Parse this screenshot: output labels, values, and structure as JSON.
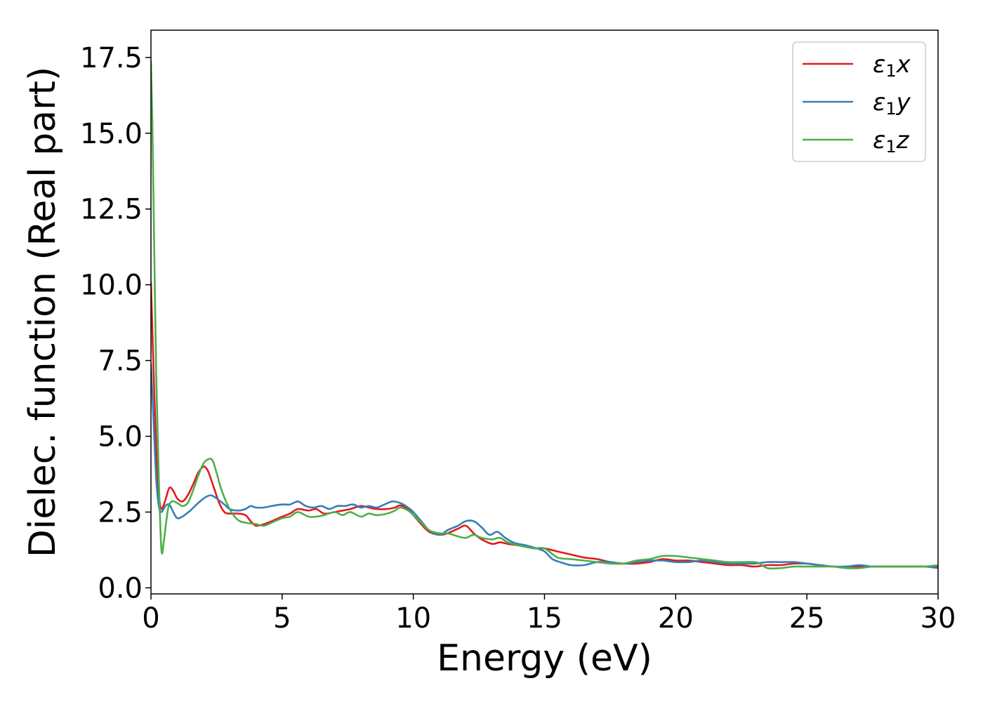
{
  "chart_data": {
    "type": "line",
    "xlabel": "Energy (eV)",
    "ylabel": "Dielec. function (Real part)",
    "xlim": [
      0,
      30
    ],
    "ylim": [
      -0.2,
      18.4
    ],
    "xticks": [
      0,
      5,
      10,
      15,
      20,
      25,
      30
    ],
    "xtick_labels": [
      "0",
      "5",
      "10",
      "15",
      "20",
      "25",
      "30"
    ],
    "yticks": [
      0,
      2.5,
      5,
      7.5,
      10,
      12.5,
      15,
      17.5
    ],
    "ytick_labels": [
      "0.0",
      "2.5",
      "5.0",
      "7.5",
      "10.0",
      "12.5",
      "15.0",
      "17.5"
    ],
    "grid": false,
    "legend_position": "top-right",
    "series": [
      {
        "name": "ε1x",
        "legend": {
          "base": "ε",
          "sub": "1",
          "axis": "x"
        },
        "color": "#e41a1c",
        "x": [
          0,
          0.1,
          0.2,
          0.3,
          0.4,
          0.55,
          0.7,
          0.85,
          1.0,
          1.2,
          1.4,
          1.6,
          1.8,
          2.0,
          2.1,
          2.2,
          2.4,
          2.6,
          2.8,
          3.0,
          3.3,
          3.6,
          3.8,
          4.0,
          4.3,
          4.6,
          5.0,
          5.3,
          5.6,
          6.0,
          6.3,
          6.6,
          7.0,
          7.3,
          7.6,
          8.0,
          8.3,
          8.6,
          9.0,
          9.3,
          9.5,
          9.8,
          10.0,
          10.3,
          10.6,
          11.0,
          11.3,
          11.7,
          12.0,
          12.3,
          12.6,
          13.0,
          13.3,
          13.6,
          14.0,
          14.3,
          14.6,
          15.0,
          15.5,
          16.0,
          16.5,
          17.0,
          17.5,
          18.0,
          18.5,
          19.0,
          19.5,
          20.0,
          20.5,
          21.0,
          21.5,
          22.0,
          22.5,
          23.0,
          23.5,
          24.0,
          24.5,
          25.0,
          25.5,
          26.0,
          26.5,
          27.0,
          27.5,
          28.0,
          28.5,
          29.0,
          29.5,
          30.0
        ],
        "y": [
          10.1,
          7.2,
          4.6,
          3.1,
          2.6,
          2.9,
          3.3,
          3.2,
          2.95,
          2.85,
          3.05,
          3.4,
          3.8,
          4.0,
          3.95,
          3.8,
          3.3,
          2.8,
          2.5,
          2.45,
          2.45,
          2.4,
          2.2,
          2.05,
          2.1,
          2.2,
          2.35,
          2.45,
          2.6,
          2.55,
          2.6,
          2.45,
          2.5,
          2.55,
          2.6,
          2.7,
          2.65,
          2.6,
          2.6,
          2.65,
          2.72,
          2.6,
          2.4,
          2.1,
          1.85,
          1.75,
          1.8,
          1.95,
          2.05,
          1.8,
          1.6,
          1.45,
          1.5,
          1.45,
          1.4,
          1.35,
          1.3,
          1.3,
          1.2,
          1.1,
          1.0,
          0.95,
          0.85,
          0.8,
          0.8,
          0.85,
          0.95,
          0.9,
          0.9,
          0.85,
          0.8,
          0.75,
          0.75,
          0.7,
          0.75,
          0.75,
          0.8,
          0.8,
          0.75,
          0.7,
          0.7,
          0.7,
          0.7,
          0.7,
          0.7,
          0.7,
          0.7,
          0.7
        ]
      },
      {
        "name": "ε1y",
        "legend": {
          "base": "ε",
          "sub": "1",
          "axis": "y"
        },
        "color": "#377eb8",
        "x": [
          0,
          0.1,
          0.2,
          0.3,
          0.4,
          0.55,
          0.7,
          0.85,
          1.0,
          1.2,
          1.5,
          1.8,
          2.1,
          2.3,
          2.5,
          2.8,
          3.0,
          3.3,
          3.6,
          3.8,
          4.0,
          4.3,
          4.6,
          5.0,
          5.3,
          5.6,
          5.9,
          6.2,
          6.5,
          6.8,
          7.1,
          7.4,
          7.7,
          8.0,
          8.3,
          8.6,
          8.9,
          9.2,
          9.5,
          9.8,
          10.0,
          10.3,
          10.6,
          11.0,
          11.3,
          11.7,
          12.0,
          12.3,
          12.6,
          12.9,
          13.2,
          13.5,
          13.8,
          14.0,
          14.3,
          14.7,
          15.0,
          15.3,
          15.6,
          16.0,
          16.5,
          17.0,
          17.5,
          18.0,
          18.5,
          19.0,
          19.5,
          20.0,
          20.5,
          21.0,
          21.5,
          22.0,
          22.5,
          23.0,
          23.5,
          24.0,
          24.5,
          25.0,
          25.5,
          26.0,
          26.5,
          27.0,
          27.5,
          28.0,
          28.5,
          29.0,
          29.5,
          30.0
        ],
        "y": [
          7.4,
          5.5,
          3.6,
          2.7,
          2.5,
          2.7,
          2.75,
          2.5,
          2.3,
          2.35,
          2.55,
          2.8,
          3.0,
          3.05,
          2.95,
          2.75,
          2.6,
          2.55,
          2.6,
          2.7,
          2.65,
          2.65,
          2.7,
          2.75,
          2.75,
          2.85,
          2.7,
          2.65,
          2.7,
          2.6,
          2.7,
          2.7,
          2.75,
          2.65,
          2.7,
          2.65,
          2.75,
          2.85,
          2.8,
          2.65,
          2.5,
          2.2,
          1.9,
          1.75,
          1.9,
          2.05,
          2.2,
          2.2,
          2.0,
          1.75,
          1.85,
          1.65,
          1.5,
          1.45,
          1.4,
          1.3,
          1.2,
          0.95,
          0.85,
          0.75,
          0.75,
          0.85,
          0.85,
          0.8,
          0.85,
          0.9,
          0.9,
          0.85,
          0.85,
          0.9,
          0.85,
          0.8,
          0.8,
          0.8,
          0.85,
          0.85,
          0.85,
          0.8,
          0.75,
          0.7,
          0.7,
          0.75,
          0.7,
          0.7,
          0.7,
          0.7,
          0.7,
          0.65
        ]
      },
      {
        "name": "ε1z",
        "legend": {
          "base": "ε",
          "sub": "1",
          "axis": "z"
        },
        "color": "#4daf4a",
        "x": [
          0,
          0.05,
          0.12,
          0.2,
          0.3,
          0.4,
          0.5,
          0.65,
          0.8,
          1.0,
          1.2,
          1.4,
          1.6,
          1.8,
          2.0,
          2.2,
          2.35,
          2.5,
          2.7,
          3.0,
          3.3,
          3.6,
          4.0,
          4.3,
          4.6,
          5.0,
          5.3,
          5.6,
          6.0,
          6.3,
          6.6,
          7.0,
          7.3,
          7.6,
          8.0,
          8.3,
          8.6,
          9.0,
          9.3,
          9.5,
          9.8,
          10.0,
          10.3,
          10.6,
          11.0,
          11.3,
          11.7,
          12.0,
          12.3,
          12.6,
          13.0,
          13.3,
          13.6,
          14.0,
          14.3,
          14.6,
          15.0,
          15.5,
          16.0,
          16.5,
          17.0,
          17.5,
          18.0,
          18.5,
          19.0,
          19.5,
          20.0,
          20.5,
          21.0,
          21.5,
          22.0,
          22.5,
          23.0,
          23.2,
          23.5,
          24.0,
          24.5,
          25.0,
          25.5,
          26.0,
          26.5,
          27.0,
          27.5,
          28.0,
          28.5,
          29.0,
          29.5,
          30.0
        ],
        "y": [
          17.4,
          15.5,
          11.5,
          7.0,
          3.6,
          1.25,
          1.6,
          2.6,
          2.85,
          2.8,
          2.7,
          2.8,
          3.2,
          3.7,
          4.1,
          4.25,
          4.2,
          3.8,
          3.2,
          2.6,
          2.25,
          2.15,
          2.1,
          2.05,
          2.15,
          2.3,
          2.35,
          2.5,
          2.35,
          2.35,
          2.4,
          2.5,
          2.4,
          2.5,
          2.35,
          2.45,
          2.4,
          2.45,
          2.55,
          2.65,
          2.55,
          2.4,
          2.15,
          1.9,
          1.8,
          1.8,
          1.7,
          1.65,
          1.75,
          1.65,
          1.6,
          1.65,
          1.5,
          1.4,
          1.35,
          1.3,
          1.3,
          1.0,
          0.95,
          0.9,
          0.85,
          0.8,
          0.8,
          0.9,
          0.95,
          1.05,
          1.05,
          1.0,
          0.95,
          0.9,
          0.85,
          0.85,
          0.85,
          0.8,
          0.65,
          0.65,
          0.7,
          0.7,
          0.7,
          0.7,
          0.65,
          0.65,
          0.7,
          0.7,
          0.7,
          0.7,
          0.7,
          0.75
        ]
      }
    ]
  }
}
